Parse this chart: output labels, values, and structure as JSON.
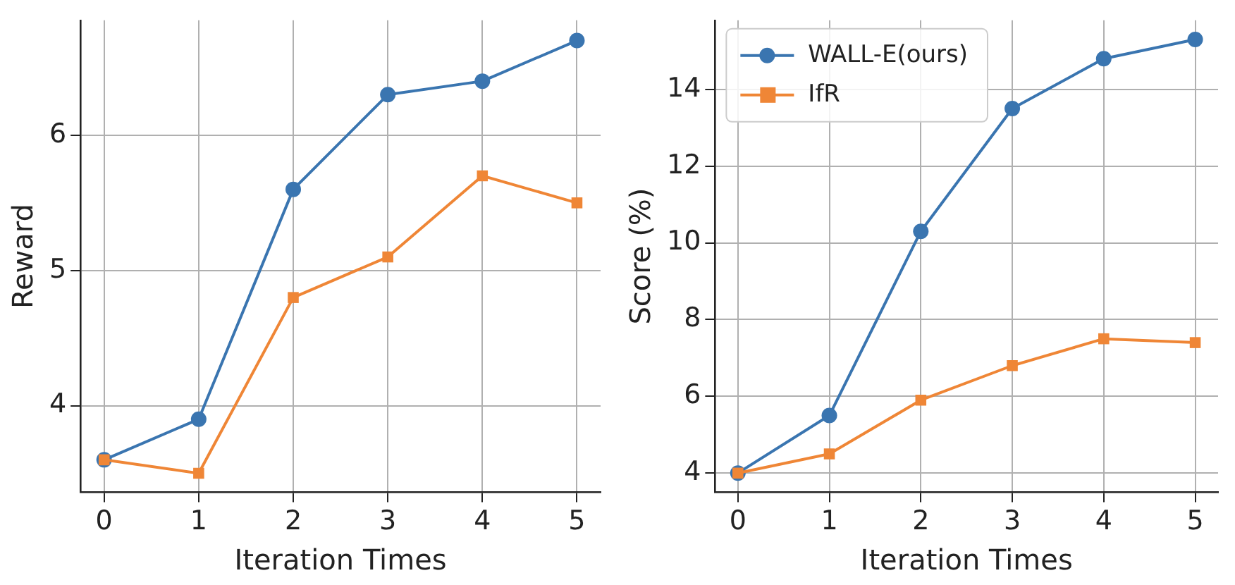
{
  "chart_data": [
    {
      "type": "line",
      "xlabel": "Iteration Times",
      "ylabel": "Reward",
      "x": [
        0,
        1,
        2,
        3,
        4,
        5
      ],
      "xlim": [
        -0.25,
        5.25
      ],
      "xticks": [
        0,
        1,
        2,
        3,
        4,
        5
      ],
      "ylim": [
        3.36,
        6.85
      ],
      "yticks": [
        4,
        5,
        6
      ],
      "grid": true,
      "legend": false,
      "series": [
        {
          "color": "#3a75b0",
          "marker": "circle",
          "values": [
            3.6,
            3.9,
            5.6,
            6.3,
            6.4,
            6.7
          ]
        },
        {
          "color": "#ef8636",
          "marker": "square",
          "values": [
            3.6,
            3.5,
            4.8,
            5.1,
            5.7,
            5.5
          ]
        }
      ]
    },
    {
      "type": "line",
      "xlabel": "Iteration Times",
      "ylabel": "Score (%)",
      "x": [
        0,
        1,
        2,
        3,
        4,
        5
      ],
      "xlim": [
        -0.25,
        5.25
      ],
      "xticks": [
        0,
        1,
        2,
        3,
        4,
        5
      ],
      "ylim": [
        3.5,
        15.8
      ],
      "yticks": [
        4,
        6,
        8,
        10,
        12,
        14
      ],
      "grid": true,
      "legend": "top left",
      "series": [
        {
          "name": "WALL-E(ours)",
          "color": "#3a75b0",
          "marker": "circle",
          "values": [
            4.0,
            5.5,
            10.3,
            13.5,
            14.8,
            15.3
          ]
        },
        {
          "name": "IfR",
          "color": "#ef8636",
          "marker": "square",
          "values": [
            4.0,
            4.5,
            5.9,
            6.8,
            7.5,
            7.4
          ]
        }
      ]
    }
  ]
}
